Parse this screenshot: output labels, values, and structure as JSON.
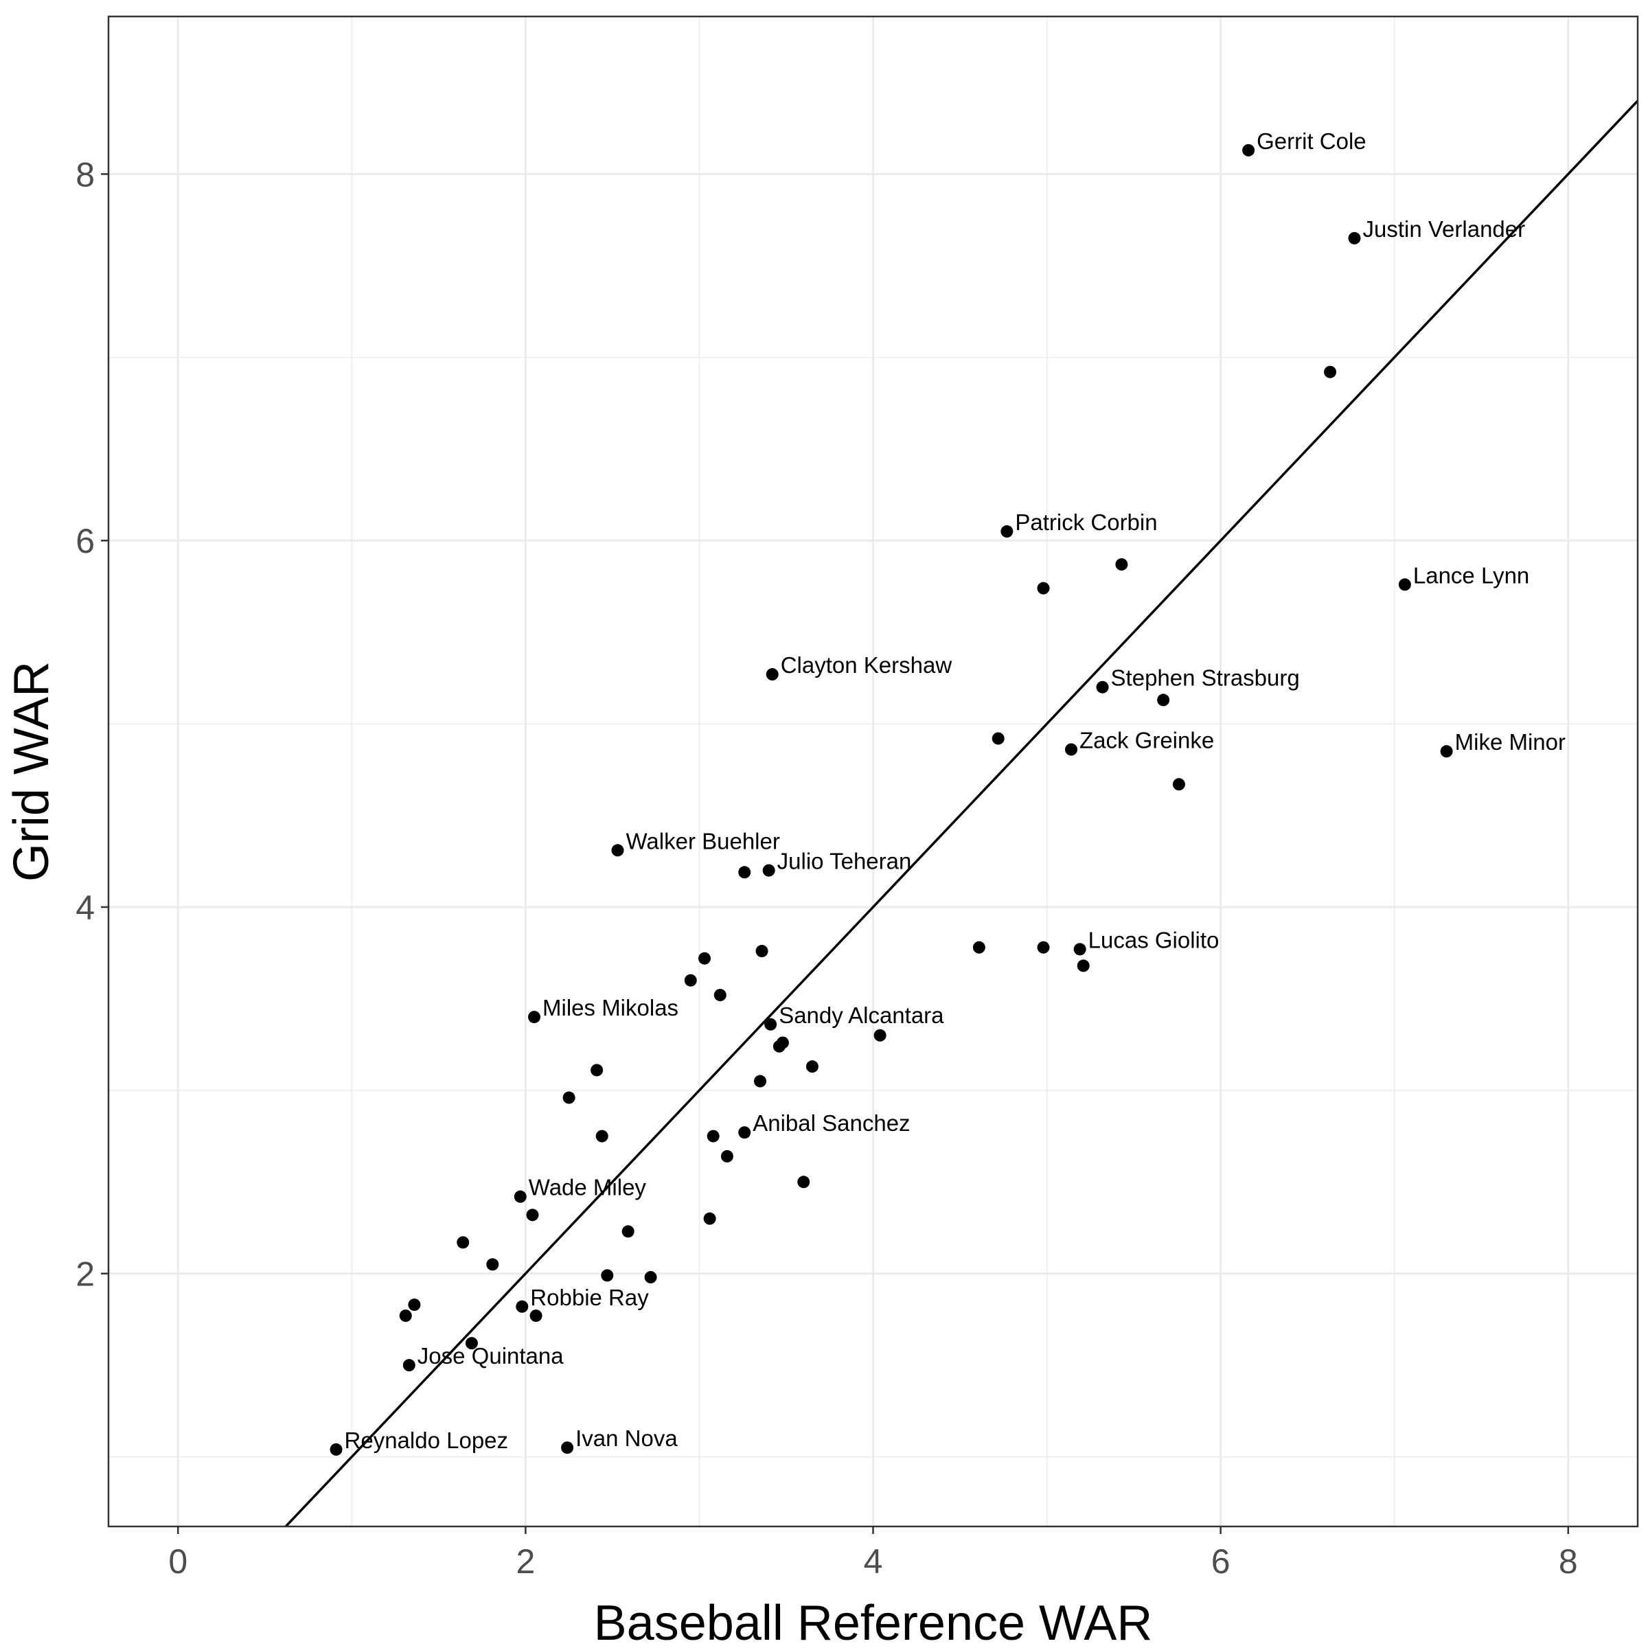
{
  "chart_data": {
    "type": "scatter",
    "title": "",
    "xlabel": "Baseball Reference WAR",
    "ylabel": "Grid WAR",
    "xlim": [
      -0.4,
      8.4
    ],
    "ylim": [
      0.62,
      8.86
    ],
    "x_ticks": [
      0,
      2,
      4,
      6,
      8
    ],
    "y_ticks": [
      2,
      4,
      6,
      8
    ],
    "x_minor_ticks": [
      1,
      3,
      5,
      7
    ],
    "y_minor_ticks": [
      1,
      3,
      5,
      7
    ],
    "grid": true,
    "legend": "none",
    "colors": {
      "point": "#000000",
      "line": "#000000",
      "grid": "#ebebeb",
      "panel_border": "#333333"
    },
    "reference_line": {
      "label": "",
      "x": [
        0.62,
        8.4
      ],
      "y": [
        0.62,
        8.4
      ]
    },
    "points": [
      {
        "x": 6.16,
        "y": 8.13,
        "label": "Gerrit Cole"
      },
      {
        "x": 6.77,
        "y": 7.65,
        "label": "Justin Verlander"
      },
      {
        "x": 6.63,
        "y": 6.92,
        "label": ""
      },
      {
        "x": 4.77,
        "y": 6.05,
        "label": "Patrick Corbin"
      },
      {
        "x": 5.43,
        "y": 5.87,
        "label": ""
      },
      {
        "x": 4.98,
        "y": 5.74,
        "label": ""
      },
      {
        "x": 7.06,
        "y": 5.76,
        "label": "Lance Lynn"
      },
      {
        "x": 3.42,
        "y": 5.27,
        "label": "Clayton Kershaw"
      },
      {
        "x": 5.32,
        "y": 5.2,
        "label": "Stephen Strasburg"
      },
      {
        "x": 5.67,
        "y": 5.13,
        "label": ""
      },
      {
        "x": 4.72,
        "y": 4.92,
        "label": ""
      },
      {
        "x": 5.14,
        "y": 4.86,
        "label": "Zack Greinke"
      },
      {
        "x": 7.3,
        "y": 4.85,
        "label": "Mike Minor"
      },
      {
        "x": 5.76,
        "y": 4.67,
        "label": ""
      },
      {
        "x": 2.53,
        "y": 4.31,
        "label": "Walker Buehler"
      },
      {
        "x": 3.26,
        "y": 4.19,
        "label": ""
      },
      {
        "x": 3.4,
        "y": 4.2,
        "label": "Julio Teheran"
      },
      {
        "x": 4.61,
        "y": 3.78,
        "label": ""
      },
      {
        "x": 4.98,
        "y": 3.78,
        "label": ""
      },
      {
        "x": 5.19,
        "y": 3.77,
        "label": "Lucas Giolito"
      },
      {
        "x": 5.21,
        "y": 3.68,
        "label": ""
      },
      {
        "x": 3.36,
        "y": 3.76,
        "label": ""
      },
      {
        "x": 3.03,
        "y": 3.72,
        "label": ""
      },
      {
        "x": 2.95,
        "y": 3.6,
        "label": ""
      },
      {
        "x": 3.12,
        "y": 3.52,
        "label": ""
      },
      {
        "x": 2.05,
        "y": 3.4,
        "label": "Miles Mikolas"
      },
      {
        "x": 3.41,
        "y": 3.36,
        "label": "Sandy Alcantara"
      },
      {
        "x": 4.04,
        "y": 3.3,
        "label": ""
      },
      {
        "x": 3.48,
        "y": 3.26,
        "label": ""
      },
      {
        "x": 3.46,
        "y": 3.24,
        "label": ""
      },
      {
        "x": 3.65,
        "y": 3.13,
        "label": ""
      },
      {
        "x": 2.41,
        "y": 3.11,
        "label": ""
      },
      {
        "x": 3.35,
        "y": 3.05,
        "label": ""
      },
      {
        "x": 2.25,
        "y": 2.96,
        "label": ""
      },
      {
        "x": 3.26,
        "y": 2.77,
        "label": "Anibal Sanchez"
      },
      {
        "x": 3.08,
        "y": 2.75,
        "label": ""
      },
      {
        "x": 2.44,
        "y": 2.75,
        "label": ""
      },
      {
        "x": 3.16,
        "y": 2.64,
        "label": ""
      },
      {
        "x": 3.6,
        "y": 2.5,
        "label": ""
      },
      {
        "x": 1.97,
        "y": 2.42,
        "label": "Wade Miley"
      },
      {
        "x": 2.04,
        "y": 2.32,
        "label": ""
      },
      {
        "x": 3.06,
        "y": 2.3,
        "label": ""
      },
      {
        "x": 2.59,
        "y": 2.23,
        "label": ""
      },
      {
        "x": 1.64,
        "y": 2.17,
        "label": ""
      },
      {
        "x": 1.81,
        "y": 2.05,
        "label": ""
      },
      {
        "x": 2.47,
        "y": 1.99,
        "label": ""
      },
      {
        "x": 2.72,
        "y": 1.98,
        "label": ""
      },
      {
        "x": 1.98,
        "y": 1.82,
        "label": "Robbie Ray"
      },
      {
        "x": 2.06,
        "y": 1.77,
        "label": ""
      },
      {
        "x": 1.36,
        "y": 1.83,
        "label": ""
      },
      {
        "x": 1.31,
        "y": 1.77,
        "label": ""
      },
      {
        "x": 1.69,
        "y": 1.62,
        "label": ""
      },
      {
        "x": 1.33,
        "y": 1.5,
        "label": "Jose Quintana"
      },
      {
        "x": 0.91,
        "y": 1.04,
        "label": "Reynaldo Lopez"
      },
      {
        "x": 2.24,
        "y": 1.05,
        "label": "Ivan Nova"
      }
    ]
  }
}
